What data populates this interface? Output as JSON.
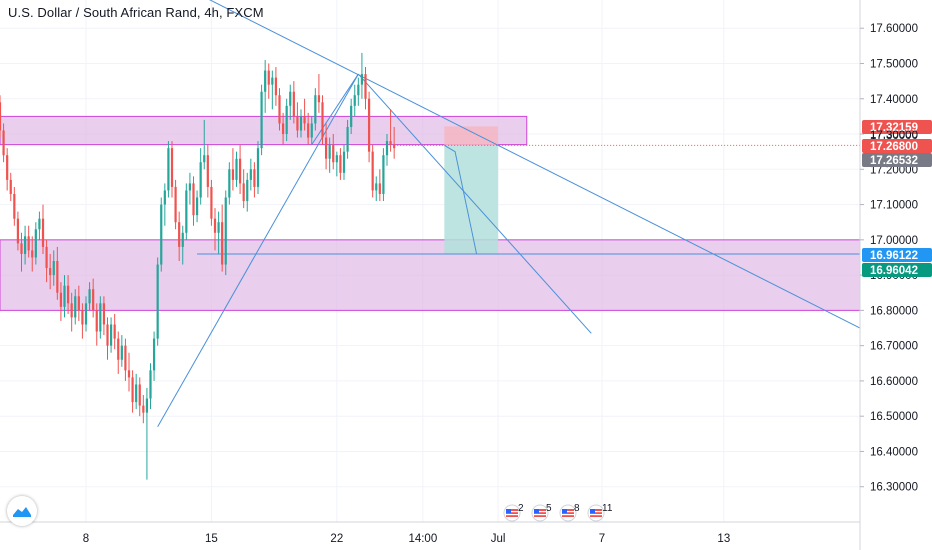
{
  "header": {
    "title": "U.S. Dollar / South African Rand, 4h, FXCM"
  },
  "logo": {
    "icon": "tradingview-cloud-icon"
  },
  "colors": {
    "up": "#26a69a",
    "down": "#ef5350",
    "zone_fill": "#e1bee7",
    "zone_stroke": "#ce44d9",
    "trendline": "#4a90d9",
    "projection_fill": "#b2dfdb",
    "risk_fill": "#f4b6c2",
    "tag_red": "#ef5350",
    "tag_grey": "#787b86",
    "tag_blue": "#2196f3",
    "tag_green": "#089981"
  },
  "events": [
    {
      "icon": "us-flag-icon",
      "count": "2"
    },
    {
      "icon": "us-flag-icon",
      "count": "5"
    },
    {
      "icon": "us-flag-icon",
      "count": "8"
    },
    {
      "icon": "us-flag-icon",
      "count": "11"
    }
  ],
  "chart_data": {
    "type": "candlestick",
    "title": "U.S. Dollar / South African Rand, 4h, FXCM",
    "ylim": [
      16.2,
      17.68
    ],
    "yticks": [
      "17.60000",
      "17.50000",
      "17.40000",
      "17.30000",
      "17.20000",
      "17.10000",
      "17.00000",
      "16.90000",
      "16.80000",
      "16.70000",
      "16.60000",
      "16.50000",
      "16.40000",
      "16.30000"
    ],
    "xticks": [
      "8",
      "15",
      "22",
      "14:00",
      "Jul",
      "7",
      "13"
    ],
    "x_range_bars": [
      0,
      240
    ],
    "xtick_bars": [
      24,
      59,
      94,
      118,
      139,
      168,
      202
    ],
    "price_tags": [
      {
        "label": "17.32159",
        "value": 17.32159,
        "color": "#ef5350"
      },
      {
        "label": "17.30000",
        "value": 17.3,
        "color": "#ffffff"
      },
      {
        "label": "17.26800",
        "value": 17.268,
        "color": "#ef5350"
      },
      {
        "label": "17.26532",
        "value": 17.26532,
        "color": "#787b86"
      },
      {
        "label": "16.96122",
        "value": 16.96122,
        "color": "#2196f3"
      },
      {
        "label": "16.96042",
        "value": 16.96042,
        "color": "#089981"
      }
    ],
    "zones": [
      {
        "x0": 0,
        "x1": 147,
        "y0": 17.27,
        "y1": 17.35
      },
      {
        "x0": 0,
        "x1": 240,
        "y0": 16.8,
        "y1": 17.0
      }
    ],
    "trendlines": [
      {
        "x0": 45,
        "y0": 17.75,
        "x1": 240,
        "y1": 16.75
      },
      {
        "x0": 44,
        "y0": 16.47,
        "x1": 100,
        "y1": 17.47
      },
      {
        "x0": 100,
        "y0": 17.47,
        "x1": 165,
        "y1": 16.735
      },
      {
        "x0": 87,
        "y0": 17.27,
        "x1": 100,
        "y1": 17.47
      }
    ],
    "projection": {
      "x0": 124,
      "x1": 139,
      "entry": 17.268,
      "stop": 17.3216,
      "target": 16.961,
      "arrow": [
        [
          124,
          17.268
        ],
        [
          127,
          17.25
        ],
        [
          133,
          16.96
        ]
      ]
    },
    "target_line": {
      "x0": 55,
      "x1": 240,
      "value": 16.96
    },
    "series": [
      {
        "name": "USDZAR",
        "ohlc": [
          [
            17.39,
            17.41,
            17.29,
            17.31
          ],
          [
            17.31,
            17.33,
            17.22,
            17.24
          ],
          [
            17.24,
            17.26,
            17.14,
            17.17
          ],
          [
            17.17,
            17.19,
            17.11,
            17.13
          ],
          [
            17.13,
            17.15,
            17.04,
            17.06
          ],
          [
            17.06,
            17.08,
            16.97,
            16.99
          ],
          [
            16.99,
            17.02,
            16.91,
            16.96
          ],
          [
            16.96,
            17.04,
            16.93,
            17.01
          ],
          [
            17.01,
            17.04,
            16.95,
            16.97
          ],
          [
            16.97,
            17.01,
            16.91,
            16.95
          ],
          [
            16.95,
            17.05,
            16.93,
            17.03
          ],
          [
            17.03,
            17.08,
            17.0,
            17.06
          ],
          [
            17.06,
            17.1,
            16.96,
            16.98
          ],
          [
            16.98,
            17.0,
            16.88,
            16.92
          ],
          [
            16.92,
            16.96,
            16.86,
            16.9
          ],
          [
            16.9,
            16.97,
            16.87,
            16.94
          ],
          [
            16.94,
            16.98,
            16.83,
            16.85
          ],
          [
            16.85,
            16.88,
            16.77,
            16.81
          ],
          [
            16.81,
            16.9,
            16.78,
            16.87
          ],
          [
            16.87,
            16.9,
            16.79,
            16.82
          ],
          [
            16.82,
            16.85,
            16.74,
            16.78
          ],
          [
            16.78,
            16.86,
            16.76,
            16.84
          ],
          [
            16.84,
            16.87,
            16.77,
            16.8
          ],
          [
            16.8,
            16.82,
            16.72,
            16.76
          ],
          [
            16.76,
            16.84,
            16.74,
            16.82
          ],
          [
            16.82,
            16.88,
            16.8,
            16.86
          ],
          [
            16.86,
            16.89,
            16.78,
            16.8
          ],
          [
            16.8,
            16.82,
            16.7,
            16.74
          ],
          [
            16.74,
            16.84,
            16.72,
            16.82
          ],
          [
            16.82,
            16.84,
            16.73,
            16.76
          ],
          [
            16.76,
            16.78,
            16.66,
            16.7
          ],
          [
            16.7,
            16.78,
            16.68,
            16.76
          ],
          [
            16.76,
            16.79,
            16.69,
            16.72
          ],
          [
            16.72,
            16.74,
            16.62,
            16.66
          ],
          [
            16.66,
            16.73,
            16.64,
            16.7
          ],
          [
            16.7,
            16.72,
            16.6,
            16.63
          ],
          [
            16.63,
            16.68,
            16.57,
            16.61
          ],
          [
            16.61,
            16.63,
            16.51,
            16.54
          ],
          [
            16.54,
            16.62,
            16.52,
            16.59
          ],
          [
            16.59,
            16.61,
            16.5,
            16.53
          ],
          [
            16.53,
            16.56,
            16.48,
            16.51
          ],
          [
            16.51,
            16.58,
            16.32,
            16.55
          ],
          [
            16.55,
            16.65,
            16.52,
            16.63
          ],
          [
            16.63,
            16.74,
            16.6,
            16.72
          ],
          [
            16.72,
            16.95,
            16.7,
            16.93
          ],
          [
            16.93,
            17.12,
            16.91,
            17.1
          ],
          [
            17.1,
            17.16,
            17.04,
            17.14
          ],
          [
            17.14,
            17.28,
            17.12,
            17.26
          ],
          [
            17.26,
            17.28,
            17.12,
            17.15
          ],
          [
            17.15,
            17.17,
            17.03,
            17.05
          ],
          [
            17.05,
            17.08,
            16.94,
            16.98
          ],
          [
            16.98,
            17.04,
            16.93,
            17.02
          ],
          [
            17.02,
            17.16,
            17.0,
            17.14
          ],
          [
            17.14,
            17.19,
            17.1,
            17.16
          ],
          [
            17.16,
            17.18,
            17.04,
            17.07
          ],
          [
            17.07,
            17.14,
            17.05,
            17.12
          ],
          [
            17.12,
            17.26,
            17.1,
            17.22
          ],
          [
            17.22,
            17.34,
            17.2,
            17.24
          ],
          [
            17.24,
            17.27,
            17.12,
            17.15
          ],
          [
            17.15,
            17.17,
            17.04,
            17.06
          ],
          [
            17.06,
            17.09,
            16.97,
            17.02
          ],
          [
            17.02,
            17.08,
            16.96,
            17.05
          ],
          [
            17.05,
            17.1,
            16.91,
            16.93
          ],
          [
            16.93,
            17.14,
            16.9,
            17.12
          ],
          [
            17.12,
            17.22,
            17.1,
            17.2
          ],
          [
            17.2,
            17.26,
            17.14,
            17.17
          ],
          [
            17.17,
            17.25,
            17.15,
            17.23
          ],
          [
            17.23,
            17.27,
            17.13,
            17.16
          ],
          [
            17.16,
            17.2,
            17.09,
            17.11
          ],
          [
            17.11,
            17.19,
            17.08,
            17.17
          ],
          [
            17.17,
            17.23,
            17.14,
            17.2
          ],
          [
            17.2,
            17.22,
            17.12,
            17.15
          ],
          [
            17.15,
            17.28,
            17.13,
            17.26
          ],
          [
            17.26,
            17.44,
            17.24,
            17.42
          ],
          [
            17.42,
            17.51,
            17.36,
            17.48
          ],
          [
            17.48,
            17.5,
            17.4,
            17.44
          ],
          [
            17.44,
            17.48,
            17.37,
            17.46
          ],
          [
            17.46,
            17.49,
            17.38,
            17.41
          ],
          [
            17.41,
            17.43,
            17.31,
            17.33
          ],
          [
            17.33,
            17.36,
            17.27,
            17.3
          ],
          [
            17.3,
            17.4,
            17.28,
            17.38
          ],
          [
            17.38,
            17.44,
            17.34,
            17.42
          ],
          [
            17.42,
            17.45,
            17.33,
            17.35
          ],
          [
            17.35,
            17.39,
            17.29,
            17.31
          ],
          [
            17.31,
            17.37,
            17.29,
            17.35
          ],
          [
            17.35,
            17.4,
            17.31,
            17.33
          ],
          [
            17.33,
            17.36,
            17.27,
            17.29
          ],
          [
            17.29,
            17.35,
            17.27,
            17.33
          ],
          [
            17.33,
            17.43,
            17.31,
            17.41
          ],
          [
            17.41,
            17.47,
            17.36,
            17.39
          ],
          [
            17.39,
            17.41,
            17.27,
            17.29
          ],
          [
            17.29,
            17.33,
            17.2,
            17.23
          ],
          [
            17.23,
            17.29,
            17.19,
            17.27
          ],
          [
            17.27,
            17.3,
            17.2,
            17.22
          ],
          [
            17.22,
            17.25,
            17.18,
            17.24
          ],
          [
            17.24,
            17.26,
            17.17,
            17.19
          ],
          [
            17.19,
            17.27,
            17.17,
            17.25
          ],
          [
            17.25,
            17.34,
            17.23,
            17.32
          ],
          [
            17.32,
            17.4,
            17.3,
            17.38
          ],
          [
            17.38,
            17.44,
            17.35,
            17.41
          ],
          [
            17.41,
            17.46,
            17.38,
            17.44
          ],
          [
            17.44,
            17.53,
            17.4,
            17.47
          ],
          [
            17.47,
            17.49,
            17.37,
            17.4
          ],
          [
            17.4,
            17.42,
            17.22,
            17.25
          ],
          [
            17.25,
            17.27,
            17.12,
            17.14
          ],
          [
            17.14,
            17.18,
            17.11,
            17.16
          ],
          [
            17.16,
            17.2,
            17.11,
            17.13
          ],
          [
            17.13,
            17.26,
            17.11,
            17.24
          ],
          [
            17.24,
            17.3,
            17.21,
            17.28
          ],
          [
            17.28,
            17.37,
            17.25,
            17.27
          ],
          [
            17.27,
            17.32,
            17.23,
            17.26
          ]
        ]
      }
    ]
  }
}
